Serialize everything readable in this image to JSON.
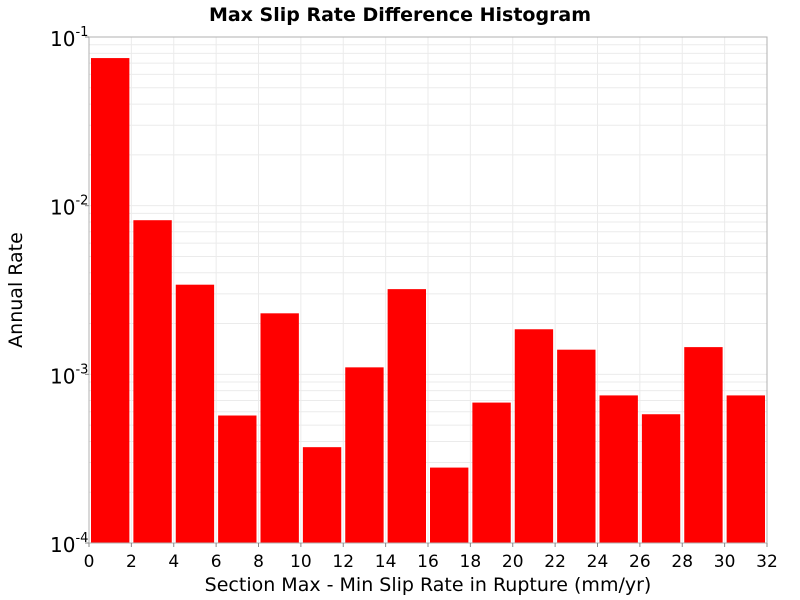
{
  "chart_data": {
    "type": "bar",
    "title": "Max Slip Rate Difference Histogram",
    "xlabel": "Section Max - Min Slip Rate in Rupture (mm/yr)",
    "ylabel": "Annual Rate",
    "xlim": [
      0,
      32
    ],
    "ylim": [
      0.0001,
      0.1
    ],
    "yscale": "log",
    "grid": true,
    "bar_color": "#ff0000",
    "x_ticks": [
      "0",
      "2",
      "4",
      "6",
      "8",
      "10",
      "12",
      "14",
      "16",
      "18",
      "20",
      "22",
      "24",
      "26",
      "28",
      "30",
      "32"
    ],
    "y_ticks": [
      {
        "base": "10",
        "exp": "-4",
        "value": 0.0001
      },
      {
        "base": "10",
        "exp": "-3",
        "value": 0.001
      },
      {
        "base": "10",
        "exp": "-2",
        "value": 0.01
      },
      {
        "base": "10",
        "exp": "-1",
        "value": 0.1
      }
    ],
    "bins": [
      {
        "x_start": 0,
        "x_end": 2,
        "value": 0.075
      },
      {
        "x_start": 2,
        "x_end": 4,
        "value": 0.0082
      },
      {
        "x_start": 4,
        "x_end": 6,
        "value": 0.0034
      },
      {
        "x_start": 6,
        "x_end": 8,
        "value": 0.00057
      },
      {
        "x_start": 8,
        "x_end": 10,
        "value": 0.0023
      },
      {
        "x_start": 10,
        "x_end": 12,
        "value": 0.00037
      },
      {
        "x_start": 12,
        "x_end": 14,
        "value": 0.0011
      },
      {
        "x_start": 14,
        "x_end": 16,
        "value": 0.0032
      },
      {
        "x_start": 16,
        "x_end": 18,
        "value": 0.00028
      },
      {
        "x_start": 18,
        "x_end": 20,
        "value": 0.00068
      },
      {
        "x_start": 20,
        "x_end": 22,
        "value": 0.00185
      },
      {
        "x_start": 22,
        "x_end": 24,
        "value": 0.0014
      },
      {
        "x_start": 24,
        "x_end": 26,
        "value": 0.00075
      },
      {
        "x_start": 26,
        "x_end": 28,
        "value": 0.00058
      },
      {
        "x_start": 28,
        "x_end": 30,
        "value": 0.00145
      },
      {
        "x_start": 30,
        "x_end": 32,
        "value": 0.00075
      }
    ]
  }
}
